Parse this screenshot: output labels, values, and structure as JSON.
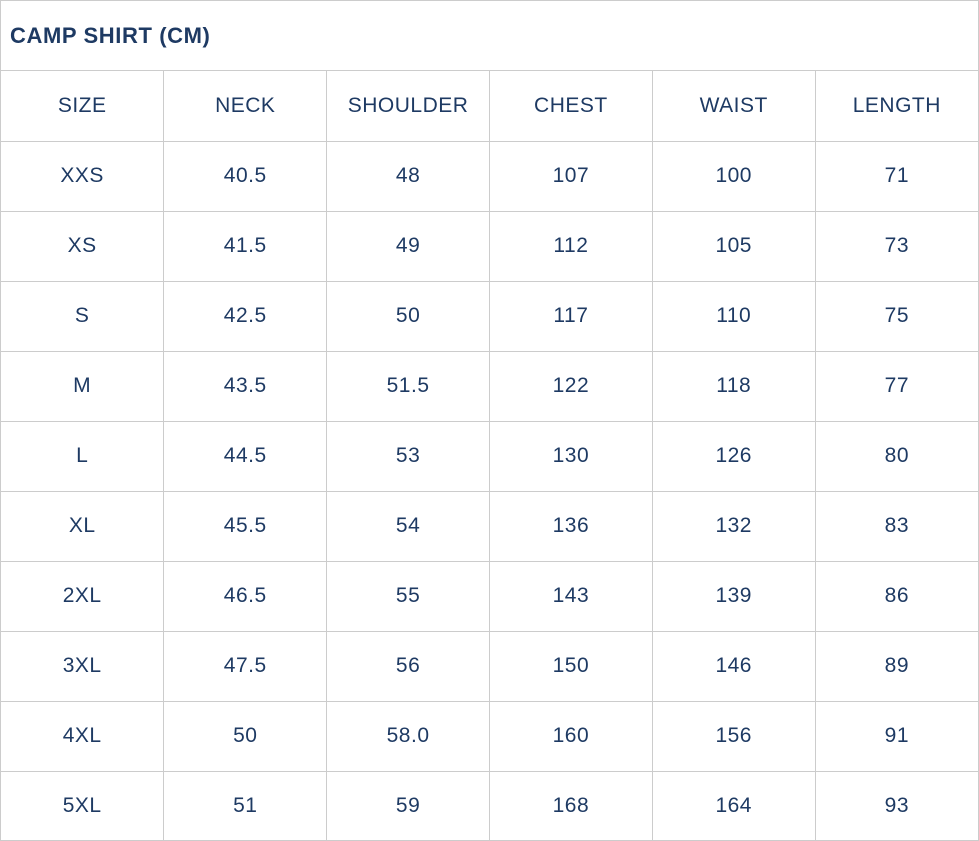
{
  "title": "CAMP SHIRT (CM)",
  "colors": {
    "text": "#1e3a63",
    "border": "#cccccc",
    "background": "#ffffff"
  },
  "chart_data": {
    "type": "table",
    "title": "CAMP SHIRT (CM)",
    "columns": [
      "SIZE",
      "NECK",
      "SHOULDER",
      "CHEST",
      "WAIST",
      "LENGTH"
    ],
    "rows": [
      [
        "XXS",
        "40.5",
        "48",
        "107",
        "100",
        "71"
      ],
      [
        "XS",
        "41.5",
        "49",
        "112",
        "105",
        "73"
      ],
      [
        "S",
        "42.5",
        "50",
        "117",
        "110",
        "75"
      ],
      [
        "M",
        "43.5",
        "51.5",
        "122",
        "118",
        "77"
      ],
      [
        "L",
        "44.5",
        "53",
        "130",
        "126",
        "80"
      ],
      [
        "XL",
        "45.5",
        "54",
        "136",
        "132",
        "83"
      ],
      [
        "2XL",
        "46.5",
        "55",
        "143",
        "139",
        "86"
      ],
      [
        "3XL",
        "47.5",
        "56",
        "150",
        "146",
        "89"
      ],
      [
        "4XL",
        "50",
        "58.0",
        "160",
        "156",
        "91"
      ],
      [
        "5XL",
        "51",
        "59",
        "168",
        "164",
        "93"
      ]
    ]
  }
}
